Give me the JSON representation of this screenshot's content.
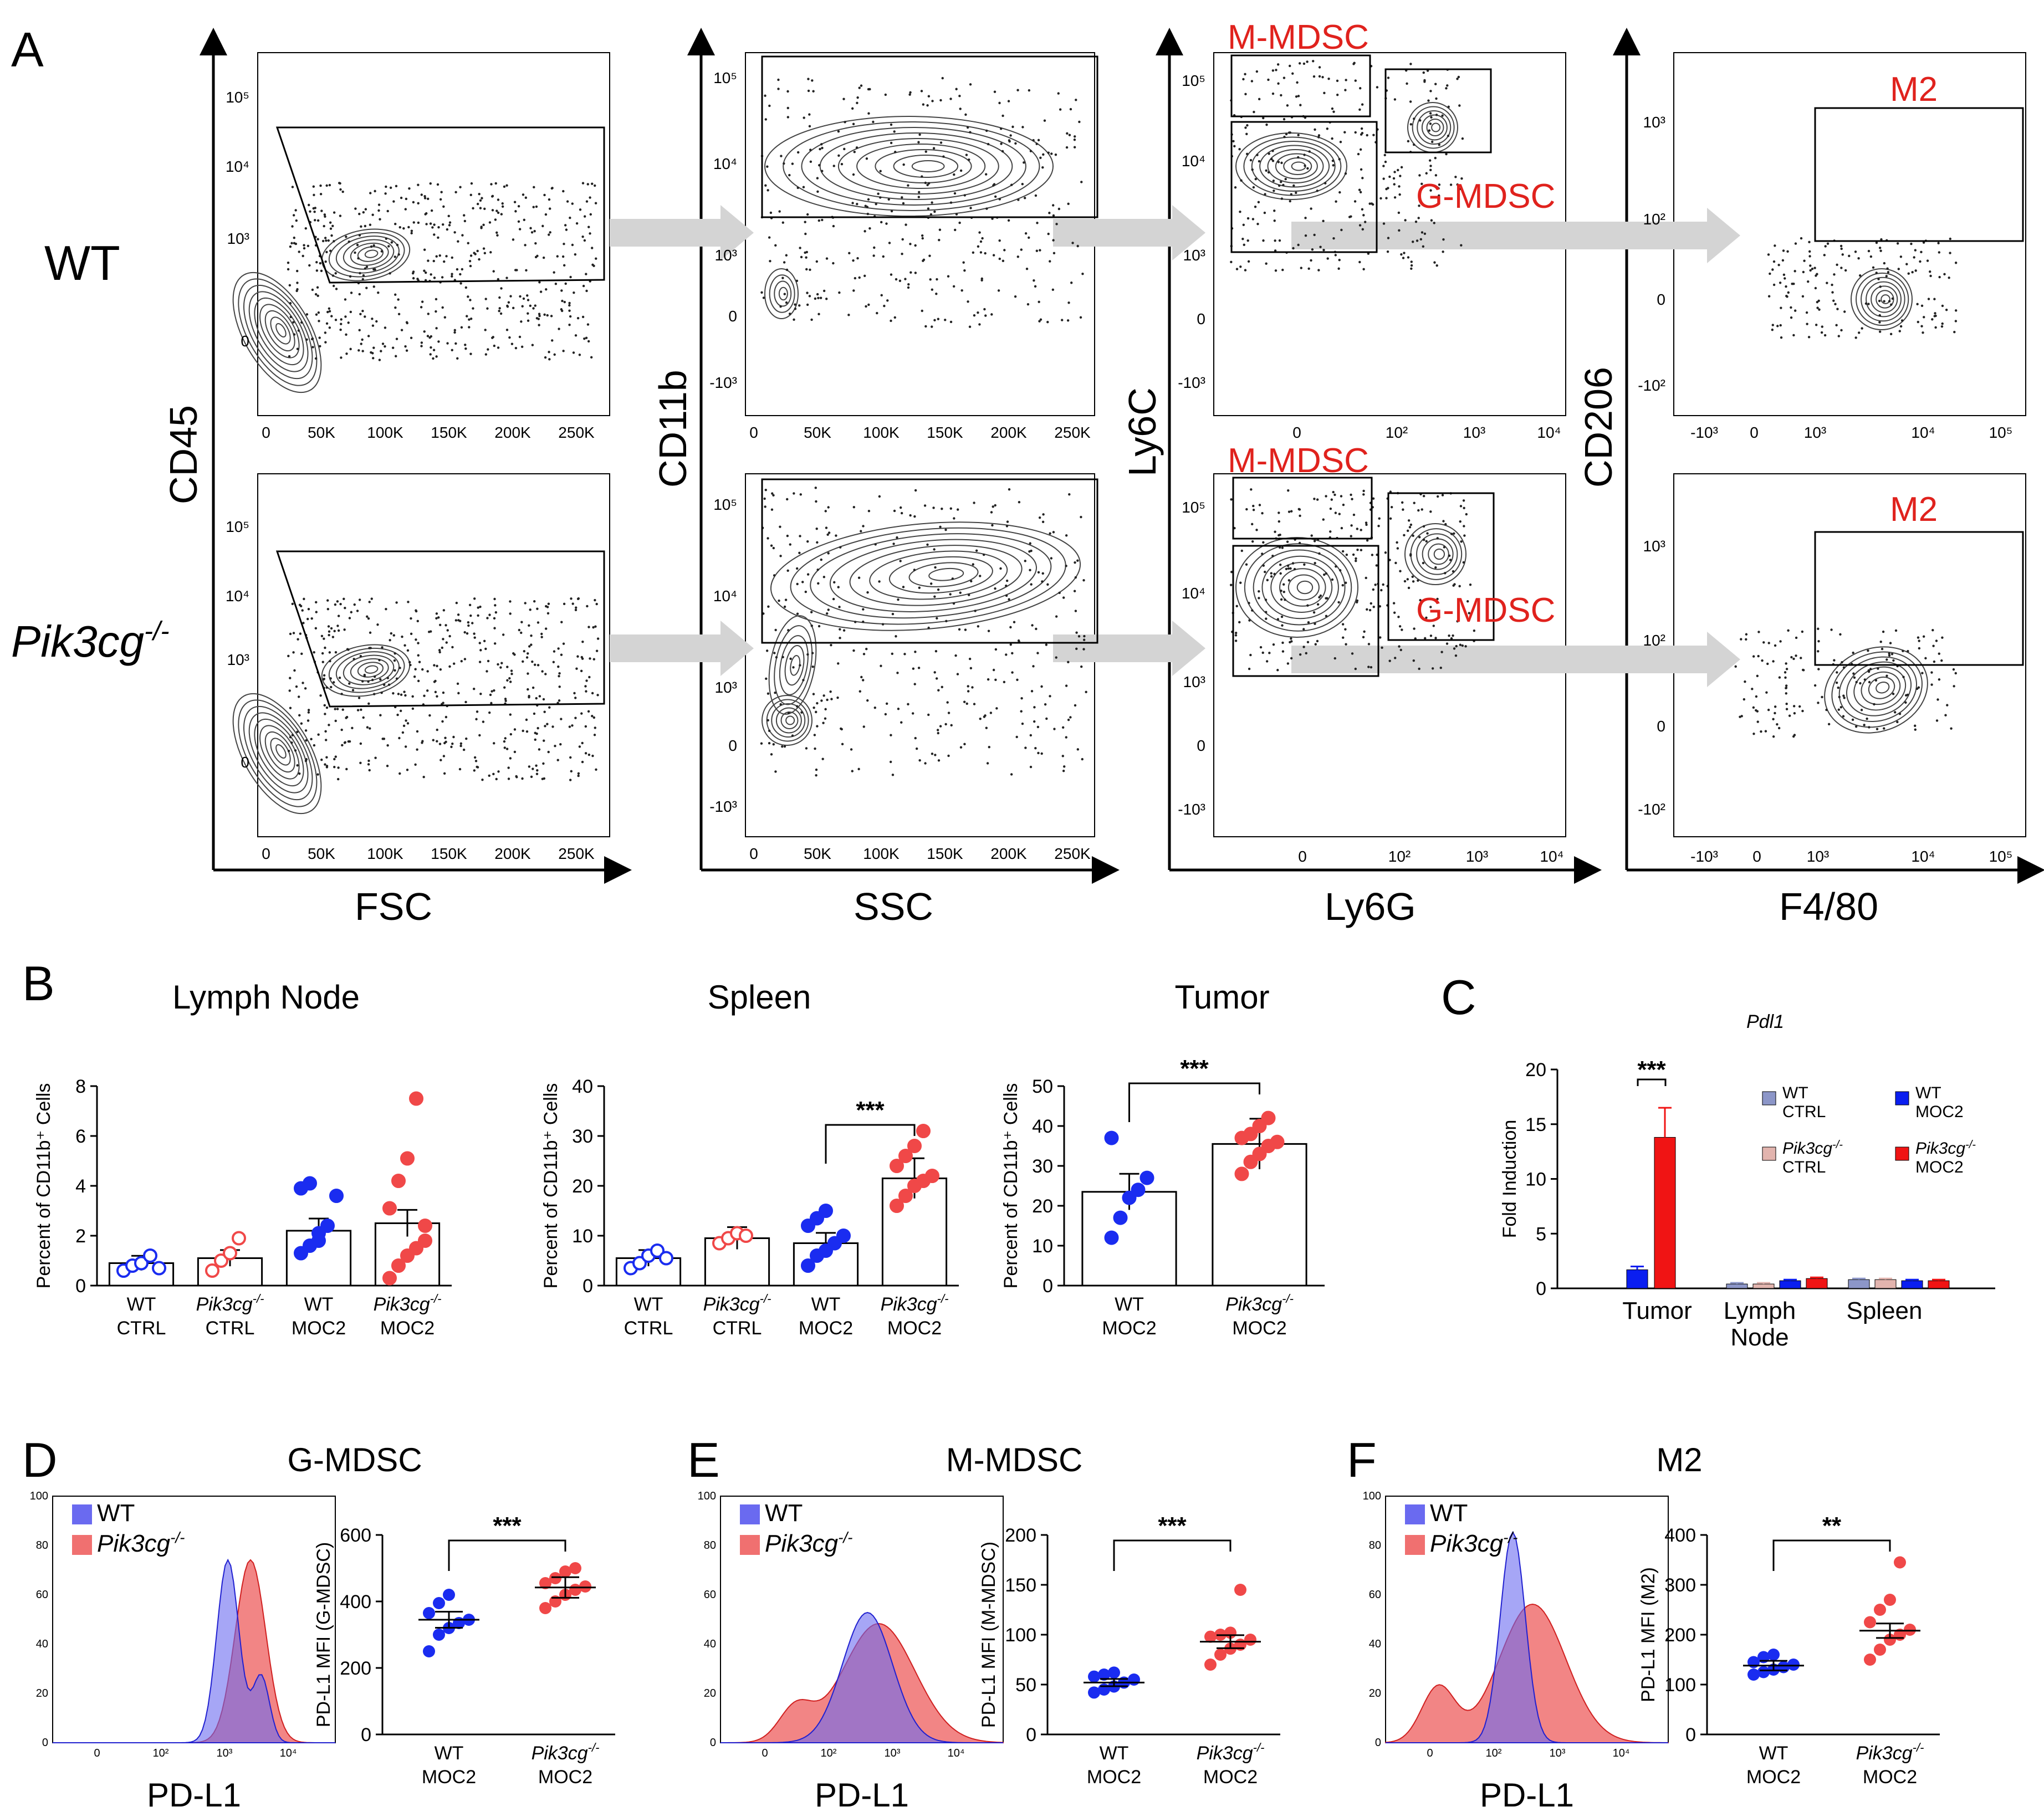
{
  "panels": {
    "A": {
      "letter": "A",
      "row_labels": [
        "WT",
        "Pik3cg"
      ],
      "row_label_sup": "-/-",
      "y_axis_labels": [
        "CD45",
        "CD11b",
        "Ly6C",
        "CD206"
      ],
      "x_axis_labels": [
        "FSC",
        "SSC",
        "Ly6G",
        "F4/80"
      ],
      "gate_labels": {
        "m_mdsc": "M-MDSC",
        "g_mdsc": "G-MDSC",
        "m2": "M2"
      },
      "linear_ticks": [
        "0",
        "50K",
        "100K",
        "150K",
        "200K",
        "250K"
      ],
      "cd45_ticks": [
        "10⁵",
        "10⁴",
        "10³",
        "0"
      ],
      "cd11b_ticks": [
        "10⁵",
        "10⁴",
        "10³",
        "0",
        "-10³"
      ],
      "ly6c_ticks": [
        "10⁵",
        "10⁴",
        "10³",
        "0",
        "-10³"
      ],
      "ly6g_ticks": [
        "0",
        "10²",
        "10³",
        "10⁴"
      ],
      "cd206_ticks": [
        "10³",
        "10²",
        "0",
        "-10²"
      ],
      "f480_ticks": [
        "-10³",
        "0",
        "10³",
        "10⁴",
        "10⁵"
      ]
    },
    "B": {
      "letter": "B",
      "ylabel": "Percent of CD11b⁺ Cells",
      "significance": "***",
      "subplots": [
        {
          "title": "Lymph Node",
          "yticks": [
            "0",
            "2",
            "4",
            "6",
            "8"
          ],
          "ymax": 8,
          "groups": [
            "WT CTRL",
            "Pik3cg-/- CTRL",
            "WT MOC2",
            "Pik3cg-/- MOC2"
          ],
          "means": [
            0.9,
            1.1,
            2.2,
            2.5
          ]
        },
        {
          "title": "Spleen",
          "yticks": [
            "0",
            "10",
            "20",
            "30",
            "40"
          ],
          "ymax": 40,
          "groups": [
            "WT CTRL",
            "Pik3cg-/- CTRL",
            "WT MOC2",
            "Pik3cg-/- MOC2"
          ],
          "means": [
            5.5,
            9.5,
            8.5,
            21.5
          ]
        },
        {
          "title": "Tumor",
          "yticks": [
            "0",
            "10",
            "20",
            "30",
            "40",
            "50"
          ],
          "ymax": 50,
          "groups": [
            "WT MOC2",
            "Pik3cg-/- MOC2"
          ],
          "means": [
            23.5,
            35.5
          ]
        }
      ]
    },
    "C": {
      "letter": "C",
      "title": "Pdl1",
      "ylabel": "Fold Induction",
      "yticks": [
        "0",
        "5",
        "10",
        "15",
        "20"
      ],
      "categories": [
        "Tumor",
        "Lymph",
        "Node",
        "Spleen"
      ],
      "legend": [
        {
          "l1": "WT",
          "l2": "CTRL"
        },
        {
          "l1": "WT",
          "l2": "MOC2"
        },
        {
          "l1": "Pik3cg-/-",
          "l2": "CTRL"
        },
        {
          "l1": "Pik3cg-/-",
          "l2": "MOC2"
        }
      ],
      "significance": "***"
    },
    "D": {
      "letter": "D",
      "title": "G-MDSC",
      "xlabel": "PD-L1",
      "ylabel": "PD-L1 MFI (G-MDSC)",
      "yticks": [
        "0",
        "200",
        "400",
        "600"
      ],
      "significance": "***"
    },
    "E": {
      "letter": "E",
      "title": "M-MDSC",
      "xlabel": "PD-L1",
      "ylabel": "PD-L1 MFI (M-MDSC)",
      "yticks": [
        "0",
        "50",
        "100",
        "150",
        "200"
      ],
      "significance": "***"
    },
    "F": {
      "letter": "F",
      "title": "M2",
      "xlabel": "PD-L1",
      "ylabel": "PD-L1 MFI (M2)",
      "yticks": [
        "0",
        "100",
        "200",
        "300",
        "400"
      ],
      "significance": "**"
    },
    "hist_common": {
      "legend_wt": "WT",
      "legend_ko": "Pik3cg-/-",
      "yticks": [
        "0",
        "20",
        "40",
        "60",
        "80",
        "100"
      ],
      "xticks": [
        "0",
        "10²",
        "10³",
        "10⁴"
      ],
      "x_groups": [
        "WT",
        "MOC2",
        "Pik3cg-/-",
        "MOC2"
      ]
    }
  },
  "chart_data": [
    {
      "type": "bar",
      "title": "Lymph Node",
      "ylabel": "Percent of CD11b+ Cells",
      "categories": [
        "WT CTRL",
        "Pik3cg-/- CTRL",
        "WT MOC2",
        "Pik3cg-/- MOC2"
      ],
      "values": [
        0.9,
        1.1,
        2.2,
        2.5
      ],
      "points": [
        [
          0.6,
          0.8,
          0.9,
          1.2,
          0.7
        ],
        [
          0.6,
          1.0,
          1.3,
          1.9
        ],
        [
          1.3,
          1.6,
          2.1,
          2.4,
          3.6,
          3.9,
          4.1,
          1.8
        ],
        [
          0.3,
          0.8,
          1.2,
          1.5,
          2.4,
          3.1,
          4.2,
          5.1,
          7.5,
          1.8
        ]
      ],
      "ylim": [
        0,
        8
      ]
    },
    {
      "type": "bar",
      "title": "Spleen",
      "ylabel": "Percent of CD11b+ Cells",
      "categories": [
        "WT CTRL",
        "Pik3cg-/- CTRL",
        "WT MOC2",
        "Pik3cg-/- MOC2"
      ],
      "values": [
        5.5,
        9.5,
        8.5,
        21.5
      ],
      "points": [
        [
          3.5,
          4.5,
          6,
          7,
          5.5
        ],
        [
          8.5,
          9.5,
          10.5,
          10
        ],
        [
          4,
          6,
          7,
          8.5,
          10,
          12,
          13.5,
          15
        ],
        [
          16,
          18,
          20,
          21,
          22,
          24,
          26,
          28,
          31
        ]
      ],
      "ylim": [
        0,
        40
      ]
    },
    {
      "type": "bar",
      "title": "Tumor",
      "ylabel": "Percent of CD11b+ Cells",
      "categories": [
        "WT MOC2",
        "Pik3cg-/- MOC2"
      ],
      "values": [
        23.5,
        35.5
      ],
      "points": [
        [
          12,
          17,
          22,
          24,
          27,
          37
        ],
        [
          28,
          31,
          33,
          35,
          36,
          37,
          38,
          40,
          42
        ]
      ],
      "ylim": [
        0,
        50
      ]
    },
    {
      "type": "bar",
      "title": "Pdl1",
      "ylabel": "Fold Induction",
      "categories": [
        "Tumor",
        "Lymph Node",
        "Spleen"
      ],
      "series": [
        {
          "name": "WT CTRL",
          "color": "#8c96c8",
          "values": [
            null,
            0.4,
            0.8
          ]
        },
        {
          "name": "Pik3cg-/- CTRL",
          "color": "#e2b4ae",
          "values": [
            null,
            0.4,
            0.8
          ]
        },
        {
          "name": "WT MOC2",
          "color": "#0a1ef0",
          "values": [
            1.7,
            0.7,
            0.7
          ]
        },
        {
          "name": "Pik3cg-/- MOC2",
          "color": "#f01414",
          "values": [
            13.8,
            0.9,
            0.7
          ]
        }
      ],
      "errors": [
        [
          null,
          0.1,
          0.1
        ],
        [
          null,
          0.1,
          0.1
        ],
        [
          0.3,
          0.1,
          0.1
        ],
        [
          2.7,
          0.1,
          0.1
        ]
      ],
      "ylim": [
        0,
        20
      ]
    },
    {
      "type": "scatter",
      "title": "G-MDSC",
      "ylabel": "PD-L1 MFI (G-MDSC)",
      "categories": [
        "WT MOC2",
        "Pik3cg-/- MOC2"
      ],
      "means": [
        345,
        442
      ],
      "points": [
        [
          250,
          300,
          320,
          335,
          345,
          365,
          395,
          420
        ],
        [
          380,
          400,
          420,
          435,
          445,
          455,
          470,
          490,
          500
        ]
      ],
      "ylim": [
        0,
        600
      ]
    },
    {
      "type": "scatter",
      "title": "M-MDSC",
      "ylabel": "PD-L1 MFI (M-MDSC)",
      "categories": [
        "WT MOC2",
        "Pik3cg-/- MOC2"
      ],
      "means": [
        52,
        93
      ],
      "points": [
        [
          42,
          45,
          48,
          52,
          55,
          58,
          60,
          62
        ],
        [
          70,
          80,
          86,
          90,
          95,
          98,
          100,
          102,
          145
        ]
      ],
      "ylim": [
        0,
        200
      ]
    },
    {
      "type": "scatter",
      "title": "M2",
      "ylabel": "PD-L1 MFI (M2)",
      "categories": [
        "WT MOC2",
        "Pik3cg-/- MOC2"
      ],
      "means": [
        138,
        208
      ],
      "points": [
        [
          120,
          125,
          130,
          135,
          140,
          145,
          155,
          160
        ],
        [
          150,
          170,
          190,
          200,
          210,
          225,
          250,
          270,
          345
        ]
      ],
      "ylim": [
        0,
        400
      ]
    }
  ],
  "colors": {
    "wt": "#1a2cf0",
    "ko": "#f04848",
    "wt_hist": "#6a6af0",
    "ko_hist": "#f07070",
    "overlap": "#a04a9a",
    "arrow": "#d4d4d4",
    "gate_red": "#e0221d"
  }
}
